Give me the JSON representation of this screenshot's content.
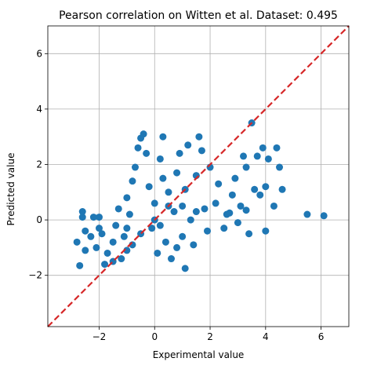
{
  "chart_data": {
    "type": "scatter",
    "title": "Pearson correlation on Witten et al. Dataset: 0.495",
    "xlabel": "Experimental value",
    "ylabel": "Predicted value",
    "xlim": [
      -3.85,
      7.0
    ],
    "ylim": [
      -3.85,
      7.0
    ],
    "xticks": [
      -2,
      0,
      2,
      4,
      6
    ],
    "yticks": [
      -2,
      0,
      2,
      4,
      6
    ],
    "xtick_labels": [
      "−2",
      "0",
      "2",
      "4",
      "6"
    ],
    "ytick_labels": [
      "−2",
      "0",
      "2",
      "4",
      "6"
    ],
    "grid": true,
    "point_color": "#1f77b4",
    "reference_line": {
      "style": "dashed",
      "color": "#d62728",
      "slope": 1,
      "intercept": 0
    },
    "series": [
      {
        "points": [
          [
            -2.6,
            0.3
          ],
          [
            -2.6,
            0.1
          ],
          [
            -2.2,
            0.1
          ],
          [
            -2.0,
            0.1
          ],
          [
            -2.8,
            -0.8
          ],
          [
            -2.7,
            -1.65
          ],
          [
            -2.5,
            -0.4
          ],
          [
            -2.5,
            -1.1
          ],
          [
            -2.3,
            -0.6
          ],
          [
            -2.1,
            -1.0
          ],
          [
            -2.0,
            -0.3
          ],
          [
            -1.9,
            -0.5
          ],
          [
            -1.8,
            -1.6
          ],
          [
            -1.7,
            -1.2
          ],
          [
            -1.5,
            -0.8
          ],
          [
            -1.4,
            -0.2
          ],
          [
            -1.3,
            0.4
          ],
          [
            -1.2,
            -1.4
          ],
          [
            -1.1,
            -0.6
          ],
          [
            -1.0,
            0.8
          ],
          [
            -1.0,
            -1.1
          ],
          [
            -0.9,
            0.2
          ],
          [
            -0.8,
            -0.9
          ],
          [
            -0.8,
            1.4
          ],
          [
            -0.7,
            1.9
          ],
          [
            -0.6,
            2.6
          ],
          [
            -0.5,
            2.95
          ],
          [
            -0.4,
            3.1
          ],
          [
            -0.3,
            2.4
          ],
          [
            -0.2,
            1.2
          ],
          [
            -0.1,
            -0.3
          ],
          [
            0.0,
            0.6
          ],
          [
            0.1,
            -1.2
          ],
          [
            0.2,
            2.2
          ],
          [
            0.3,
            3.0
          ],
          [
            0.3,
            1.5
          ],
          [
            0.4,
            -0.8
          ],
          [
            0.5,
            1.0
          ],
          [
            0.6,
            -1.4
          ],
          [
            0.7,
            0.3
          ],
          [
            0.8,
            1.7
          ],
          [
            0.9,
            2.4
          ],
          [
            1.0,
            -0.6
          ],
          [
            1.1,
            1.1
          ],
          [
            1.2,
            2.7
          ],
          [
            1.3,
            0.0
          ],
          [
            1.4,
            -0.9
          ],
          [
            1.5,
            1.6
          ],
          [
            1.6,
            3.0
          ],
          [
            1.7,
            2.5
          ],
          [
            1.8,
            0.4
          ],
          [
            1.9,
            -0.4
          ],
          [
            2.0,
            1.9
          ],
          [
            2.2,
            0.6
          ],
          [
            2.3,
            1.3
          ],
          [
            2.5,
            -0.3
          ],
          [
            2.6,
            0.2
          ],
          [
            2.8,
            0.9
          ],
          [
            2.9,
            1.5
          ],
          [
            3.0,
            -0.1
          ],
          [
            3.1,
            0.5
          ],
          [
            3.2,
            2.3
          ],
          [
            3.3,
            1.9
          ],
          [
            3.4,
            -0.5
          ],
          [
            3.5,
            3.5
          ],
          [
            3.6,
            1.1
          ],
          [
            3.7,
            2.3
          ],
          [
            3.8,
            0.9
          ],
          [
            3.9,
            2.6
          ],
          [
            4.0,
            1.2
          ],
          [
            4.0,
            -0.4
          ],
          [
            4.1,
            2.2
          ],
          [
            4.3,
            0.5
          ],
          [
            4.4,
            2.6
          ],
          [
            4.5,
            1.9
          ],
          [
            4.6,
            1.1
          ],
          [
            1.1,
            -1.75
          ],
          [
            5.5,
            0.2
          ],
          [
            6.1,
            0.15
          ],
          [
            2.7,
            0.25
          ],
          [
            3.3,
            0.35
          ],
          [
            0.0,
            0.0
          ],
          [
            -0.5,
            -0.5
          ],
          [
            0.5,
            0.5
          ],
          [
            1.0,
            0.5
          ],
          [
            -1.0,
            -0.3
          ],
          [
            0.2,
            -0.2
          ],
          [
            1.5,
            0.3
          ],
          [
            -1.5,
            -1.5
          ],
          [
            0.8,
            -1.0
          ]
        ]
      }
    ]
  }
}
